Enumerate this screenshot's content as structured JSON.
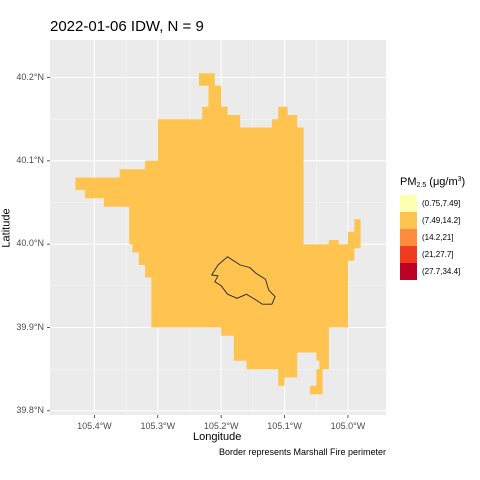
{
  "chart_data": {
    "type": "heatmap",
    "title": "2022-01-06 IDW, N =  9",
    "xlabel": "Longitude",
    "ylabel": "Latitude",
    "caption": "Border represents Marshall Fire perimeter",
    "xlim": [
      -105.47,
      -104.94
    ],
    "ylim": [
      39.795,
      40.245
    ],
    "x_ticks": [
      {
        "value": -105.4,
        "label": "105.4°W"
      },
      {
        "value": -105.3,
        "label": "105.3°W"
      },
      {
        "value": -105.2,
        "label": "105.2°W"
      },
      {
        "value": -105.1,
        "label": "105.1°W"
      },
      {
        "value": -105.0,
        "label": "105.0°W"
      }
    ],
    "y_ticks": [
      {
        "value": 39.8,
        "label": "39.8°N"
      },
      {
        "value": 39.9,
        "label": "39.9°N"
      },
      {
        "value": 40.0,
        "label": "40.0°N"
      },
      {
        "value": 40.1,
        "label": "40.1°N"
      },
      {
        "value": 40.2,
        "label": "40.2°N"
      }
    ],
    "grid": true,
    "legend_position": "right",
    "legend_title": {
      "main": "PM",
      "sub": "2.5",
      "unit_pre": " (μg/m",
      "unit_sup": "3",
      "unit_post": ")"
    },
    "legend": [
      {
        "label": "(0.75,7.49]",
        "color": "#FFFFB2"
      },
      {
        "label": "(7.49,14.2]",
        "color": "#FEC44F"
      },
      {
        "label": "(14.2,21]",
        "color": "#FD8D3C"
      },
      {
        "label": "(21,27.7]",
        "color": "#F03B20"
      },
      {
        "label": "(27.7,34.4]",
        "color": "#BD0026"
      }
    ],
    "fill_color": "#FEC44F",
    "filled_region": [
      [
        -105.235,
        40.205
      ],
      [
        -105.21,
        40.205
      ],
      [
        -105.21,
        40.19
      ],
      [
        -105.2,
        40.19
      ],
      [
        -105.2,
        40.165
      ],
      [
        -105.19,
        40.165
      ],
      [
        -105.19,
        40.155
      ],
      [
        -105.17,
        40.155
      ],
      [
        -105.17,
        40.14
      ],
      [
        -105.12,
        40.14
      ],
      [
        -105.12,
        40.15
      ],
      [
        -105.11,
        40.15
      ],
      [
        -105.11,
        40.165
      ],
      [
        -105.095,
        40.165
      ],
      [
        -105.095,
        40.155
      ],
      [
        -105.08,
        40.155
      ],
      [
        -105.08,
        40.14
      ],
      [
        -105.07,
        40.14
      ],
      [
        -105.07,
        40.0
      ],
      [
        -105.03,
        40.0
      ],
      [
        -105.03,
        40.005
      ],
      [
        -105.015,
        40.005
      ],
      [
        -105.015,
        40.0
      ],
      [
        -105.0,
        40.0
      ],
      [
        -105.0,
        40.015
      ],
      [
        -104.99,
        40.015
      ],
      [
        -104.99,
        40.03
      ],
      [
        -104.98,
        40.03
      ],
      [
        -104.98,
        39.995
      ],
      [
        -104.99,
        39.995
      ],
      [
        -104.99,
        39.98
      ],
      [
        -105.0,
        39.98
      ],
      [
        -105.0,
        39.9
      ],
      [
        -105.03,
        39.9
      ],
      [
        -105.03,
        39.85
      ],
      [
        -105.04,
        39.85
      ],
      [
        -105.04,
        39.82
      ],
      [
        -105.06,
        39.82
      ],
      [
        -105.06,
        39.83
      ],
      [
        -105.05,
        39.83
      ],
      [
        -105.05,
        39.85
      ],
      [
        -105.045,
        39.85
      ],
      [
        -105.045,
        39.86
      ],
      [
        -105.05,
        39.86
      ],
      [
        -105.05,
        39.87
      ],
      [
        -105.08,
        39.87
      ],
      [
        -105.08,
        39.84
      ],
      [
        -105.1,
        39.84
      ],
      [
        -105.1,
        39.83
      ],
      [
        -105.11,
        39.83
      ],
      [
        -105.11,
        39.85
      ],
      [
        -105.16,
        39.85
      ],
      [
        -105.16,
        39.86
      ],
      [
        -105.18,
        39.86
      ],
      [
        -105.18,
        39.89
      ],
      [
        -105.2,
        39.89
      ],
      [
        -105.2,
        39.9
      ],
      [
        -105.31,
        39.9
      ],
      [
        -105.31,
        39.96
      ],
      [
        -105.32,
        39.96
      ],
      [
        -105.32,
        39.975
      ],
      [
        -105.33,
        39.975
      ],
      [
        -105.33,
        39.99
      ],
      [
        -105.34,
        39.99
      ],
      [
        -105.34,
        40.0
      ],
      [
        -105.345,
        40.0
      ],
      [
        -105.345,
        40.045
      ],
      [
        -105.385,
        40.045
      ],
      [
        -105.385,
        40.055
      ],
      [
        -105.415,
        40.055
      ],
      [
        -105.415,
        40.065
      ],
      [
        -105.43,
        40.065
      ],
      [
        -105.43,
        40.08
      ],
      [
        -105.36,
        40.08
      ],
      [
        -105.36,
        40.09
      ],
      [
        -105.32,
        40.09
      ],
      [
        -105.32,
        40.1
      ],
      [
        -105.3,
        40.1
      ],
      [
        -105.3,
        40.15
      ],
      [
        -105.23,
        40.15
      ],
      [
        -105.23,
        40.165
      ],
      [
        -105.22,
        40.165
      ],
      [
        -105.22,
        40.19
      ],
      [
        -105.235,
        40.19
      ]
    ],
    "fire_perimeter": [
      [
        -105.205,
        39.975
      ],
      [
        -105.19,
        39.985
      ],
      [
        -105.17,
        39.975
      ],
      [
        -105.155,
        39.972
      ],
      [
        -105.145,
        39.965
      ],
      [
        -105.13,
        39.958
      ],
      [
        -105.125,
        39.945
      ],
      [
        -105.115,
        39.937
      ],
      [
        -105.12,
        39.928
      ],
      [
        -105.135,
        39.928
      ],
      [
        -105.145,
        39.933
      ],
      [
        -105.16,
        39.94
      ],
      [
        -105.175,
        39.935
      ],
      [
        -105.19,
        39.94
      ],
      [
        -105.2,
        39.95
      ],
      [
        -105.21,
        39.955
      ],
      [
        -105.205,
        39.962
      ],
      [
        -105.215,
        39.963
      ],
      [
        -105.205,
        39.975
      ]
    ]
  }
}
